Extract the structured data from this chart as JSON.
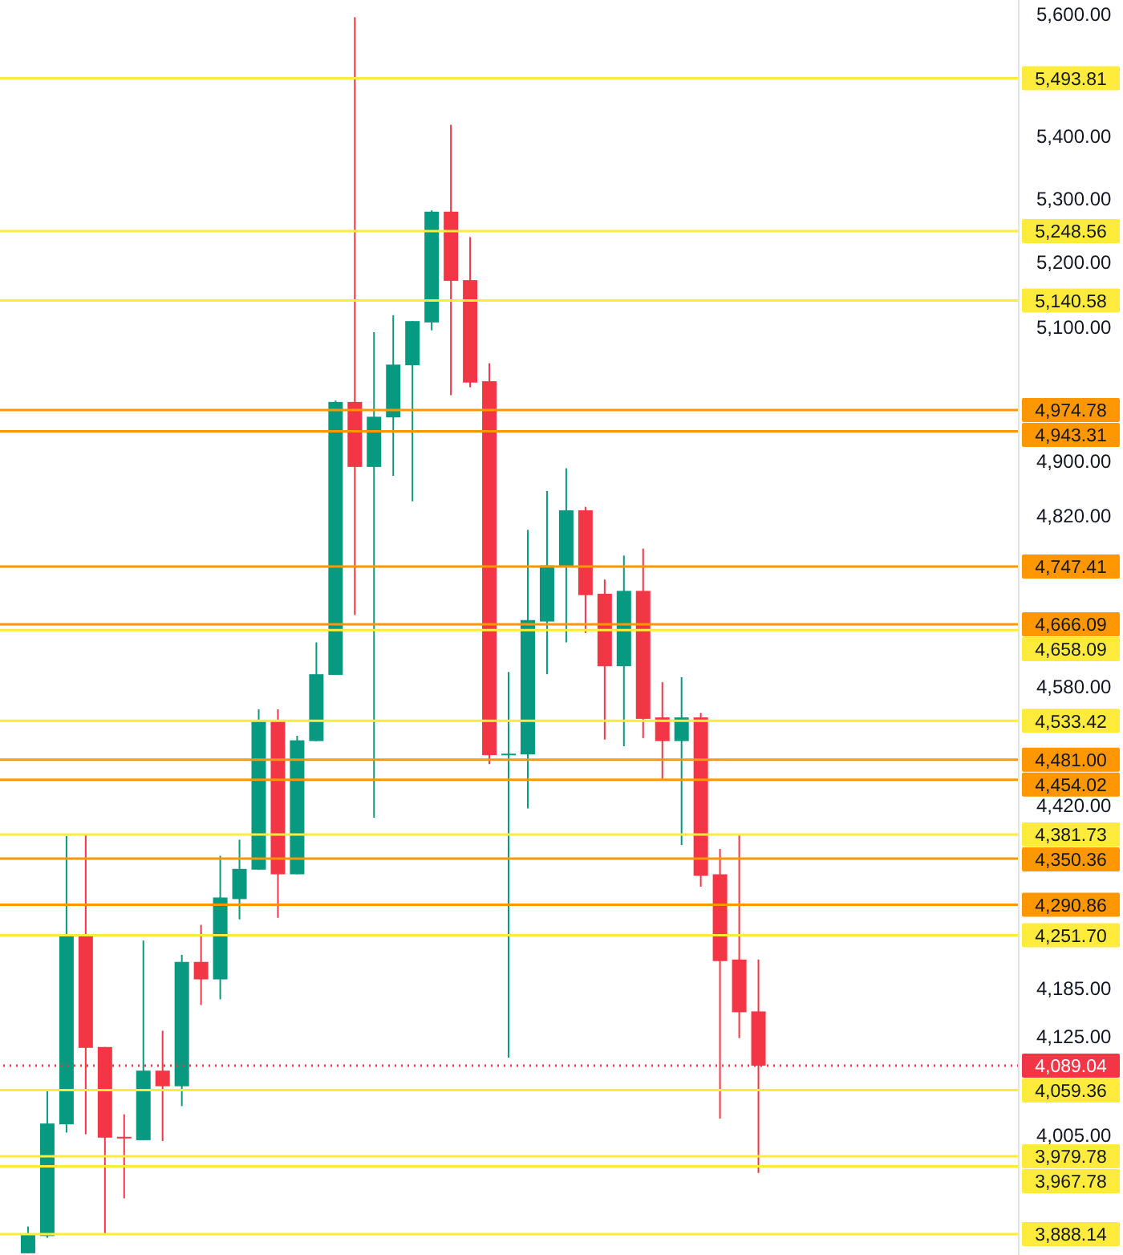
{
  "chart_data": {
    "type": "candlestick",
    "log": true,
    "tick_labels": "y",
    "categories": [
      null,
      null,
      null,
      null,
      null,
      null,
      null,
      null,
      null,
      null,
      null,
      null,
      null,
      null,
      null,
      null,
      null,
      null,
      null,
      null,
      null,
      null,
      null,
      null,
      null,
      null,
      null,
      null,
      null,
      null,
      null,
      null,
      null,
      null,
      null,
      null,
      null,
      null,
      null,
      null,
      null,
      null,
      null,
      null,
      null,
      null,
      null,
      null,
      null,
      null,
      null,
      null,
      null
    ],
    "ohlc": [
      null,
      [
        3866,
        3897,
        3866,
        3889
      ],
      [
        3886,
        4059,
        3884,
        4019
      ],
      [
        4018,
        4380,
        4008,
        4252
      ],
      [
        4252,
        4382,
        4006,
        4111
      ],
      [
        4112,
        4112,
        3889,
        4002
      ],
      [
        4003,
        4030,
        3930,
        4002
      ],
      [
        3999,
        4245,
        3999,
        4083
      ],
      [
        4083,
        4132,
        3998,
        4064
      ],
      [
        4064,
        4227,
        4040,
        4218
      ],
      [
        4218,
        4265,
        4164,
        4196
      ],
      [
        4196,
        4354,
        4171,
        4300
      ],
      [
        4298,
        4375,
        4272,
        4337
      ],
      [
        4336,
        4549,
        4336,
        4533
      ],
      [
        4533,
        4549,
        4274,
        4330
      ],
      [
        4330,
        4513,
        4330,
        4507
      ],
      [
        4506,
        4641,
        4506,
        4597
      ],
      [
        4596,
        4989,
        4596,
        4987
      ],
      [
        4987,
        5595,
        4679,
        4891
      ],
      [
        4891,
        5092,
        4404,
        4965
      ],
      [
        4964,
        5118,
        4878,
        5043
      ],
      [
        5042,
        5109,
        4841,
        5109
      ],
      [
        5107,
        5281,
        5095,
        5279
      ],
      [
        5279,
        5418,
        4997,
        5171
      ],
      [
        5172,
        5239,
        5009,
        5016
      ],
      [
        5018,
        5045,
        4475,
        4487
      ],
      [
        4488,
        4600,
        4099,
        4489
      ],
      [
        4488,
        4800,
        4416,
        4672
      ],
      [
        4670,
        4856,
        4597,
        4749
      ],
      [
        4747,
        4889,
        4641,
        4828
      ],
      [
        4828,
        4833,
        4654,
        4707
      ],
      [
        4709,
        4729,
        4508,
        4608
      ],
      [
        4608,
        4763,
        4499,
        4713
      ],
      [
        4713,
        4773,
        4510,
        4536
      ],
      [
        4538,
        4586,
        4453,
        4506
      ],
      [
        4506,
        4593,
        4368,
        4538
      ],
      [
        4538,
        4544,
        4314,
        4328
      ],
      [
        4330,
        4363,
        4025,
        4219
      ],
      [
        4221,
        4382,
        4123,
        4155
      ],
      [
        4156,
        4221,
        3960,
        4089
      ],
      null,
      null,
      null,
      null,
      null,
      null,
      null,
      null,
      null,
      null,
      null,
      null,
      null
    ],
    "colors": [
      null,
      "#089981",
      "#089981",
      "#089981",
      "#f23645",
      "#f23645",
      "#f23645",
      "#089981",
      "#f23645",
      "#089981",
      "#f23645",
      "#089981",
      "#089981",
      "#089981",
      "#f23645",
      "#089981",
      "#089981",
      "#089981",
      "#f23645",
      "#089981",
      "#089981",
      "#089981",
      "#089981",
      "#f23645",
      "#f23645",
      "#f23645",
      "#089981",
      "#089981",
      "#089981",
      "#089981",
      "#f23645",
      "#f23645",
      "#089981",
      "#f23645",
      "#f23645",
      "#089981",
      "#f23645",
      "#f23645",
      "#f23645",
      "#f23645",
      null,
      null,
      null,
      null,
      null,
      null,
      null,
      null,
      null,
      null,
      null,
      null,
      null
    ],
    "ylim": [
      3864,
      5624
    ],
    "yticks": [
      {
        "value": 4005,
        "label": "4,005.00"
      },
      {
        "value": 4125,
        "label": "4,125.00"
      },
      {
        "value": 4185,
        "label": "4,185.00"
      },
      {
        "value": 4420,
        "label": "4,420.00"
      },
      {
        "value": 4580,
        "label": "4,580.00"
      },
      {
        "value": 4820,
        "label": "4,820.00"
      },
      {
        "value": 4900,
        "label": "4,900.00"
      },
      {
        "value": 5100,
        "label": "5,100.00"
      },
      {
        "value": 5200,
        "label": "5,200.00"
      },
      {
        "value": 5300,
        "label": "5,300.00"
      },
      {
        "value": 5400,
        "label": "5,400.00"
      },
      {
        "value": 5600,
        "label": "5,600.00"
      }
    ],
    "ref_lines": [
      {
        "axis": "y",
        "value": 5493.81,
        "label": "5,493.81",
        "color": "#ffeb3b"
      },
      {
        "axis": "y",
        "value": 5248.56,
        "label": "5,248.56",
        "color": "#ffeb3b"
      },
      {
        "axis": "y",
        "value": 5140.58,
        "label": "5,140.58",
        "color": "#ffeb3b"
      },
      {
        "axis": "y",
        "value": 4974.78,
        "label": "4,974.78",
        "color": "#ff9800"
      },
      {
        "axis": "y",
        "value": 4943.31,
        "label": "4,943.31",
        "color": "#ff9800"
      },
      {
        "axis": "y",
        "value": 4747.41,
        "label": "4,747.41",
        "color": "#ff9800"
      },
      {
        "axis": "y",
        "value": 4666.09,
        "label": "4,666.09",
        "color": "#ff9800"
      },
      {
        "axis": "y",
        "value": 4658.09,
        "label": "4,658.09",
        "color": "#ffeb3b"
      },
      {
        "axis": "y",
        "value": 4533.42,
        "label": "4,533.42",
        "color": "#ffeb3b"
      },
      {
        "axis": "y",
        "value": 4481.0,
        "label": "4,481.00",
        "color": "#ff9800"
      },
      {
        "axis": "y",
        "value": 4454.02,
        "label": "4,454.02",
        "color": "#ff9800"
      },
      {
        "axis": "y",
        "value": 4381.73,
        "label": "4,381.73",
        "color": "#ffeb3b"
      },
      {
        "axis": "y",
        "value": 4350.36,
        "label": "4,350.36",
        "color": "#ff9800"
      },
      {
        "axis": "y",
        "value": 4290.86,
        "label": "4,290.86",
        "color": "#ff9800"
      },
      {
        "axis": "y",
        "value": 4251.7,
        "label": "4,251.70",
        "color": "#ffeb3b"
      },
      {
        "axis": "y",
        "value": 4089.04,
        "label": "4,089.04",
        "color": "#f23645",
        "line_style": "dotted"
      },
      {
        "axis": "y",
        "value": 4059.36,
        "label": "4,059.36",
        "color": "#ffeb3b"
      },
      {
        "axis": "y",
        "value": 3979.78,
        "label": "3,979.78",
        "color": "#ffeb3b"
      },
      {
        "axis": "y",
        "value": 3967.78,
        "label": "3,967.78",
        "color": "#ffeb3b"
      },
      {
        "axis": "y",
        "value": 3888.14,
        "label": "3,888.14",
        "color": "#ffeb3b"
      }
    ]
  }
}
